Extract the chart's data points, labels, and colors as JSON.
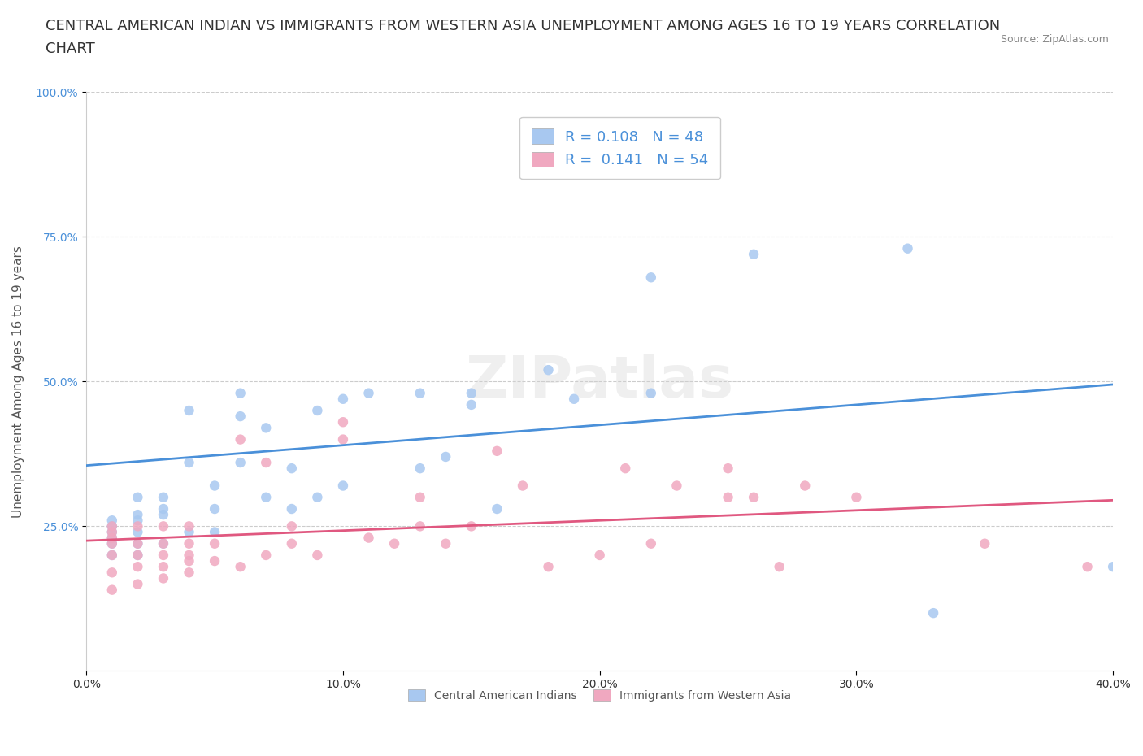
{
  "title_line1": "CENTRAL AMERICAN INDIAN VS IMMIGRANTS FROM WESTERN ASIA UNEMPLOYMENT AMONG AGES 16 TO 19 YEARS CORRELATION",
  "title_line2": "CHART",
  "source_text": "Source: ZipAtlas.com",
  "ylabel": "Unemployment Among Ages 16 to 19 years",
  "xlim": [
    0.0,
    0.4
  ],
  "ylim": [
    0.0,
    1.0
  ],
  "xtick_labels": [
    "0.0%",
    "10.0%",
    "20.0%",
    "30.0%",
    "40.0%"
  ],
  "xtick_values": [
    0.0,
    0.1,
    0.2,
    0.3,
    0.4
  ],
  "ytick_labels": [
    "25.0%",
    "50.0%",
    "75.0%",
    "100.0%"
  ],
  "ytick_values": [
    0.25,
    0.5,
    0.75,
    1.0
  ],
  "blue_color": "#a8c8f0",
  "blue_line_color": "#4a90d9",
  "pink_color": "#f0a8c0",
  "pink_line_color": "#e05880",
  "legend_r_blue": "0.108",
  "legend_n_blue": "48",
  "legend_r_pink": "0.141",
  "legend_n_pink": "54",
  "legend_label_blue": "Central American Indians",
  "legend_label_pink": "Immigrants from Western Asia",
  "watermark": "ZIPatlas",
  "blue_scatter_x": [
    0.01,
    0.01,
    0.01,
    0.01,
    0.01,
    0.01,
    0.02,
    0.02,
    0.02,
    0.02,
    0.02,
    0.02,
    0.03,
    0.03,
    0.03,
    0.03,
    0.04,
    0.04,
    0.04,
    0.05,
    0.05,
    0.05,
    0.06,
    0.06,
    0.06,
    0.07,
    0.07,
    0.08,
    0.08,
    0.09,
    0.09,
    0.1,
    0.1,
    0.11,
    0.13,
    0.13,
    0.14,
    0.15,
    0.15,
    0.16,
    0.18,
    0.19,
    0.22,
    0.22,
    0.26,
    0.32,
    0.33,
    0.4
  ],
  "blue_scatter_y": [
    0.2,
    0.22,
    0.23,
    0.24,
    0.25,
    0.26,
    0.2,
    0.22,
    0.24,
    0.26,
    0.27,
    0.3,
    0.22,
    0.27,
    0.28,
    0.3,
    0.24,
    0.36,
    0.45,
    0.24,
    0.28,
    0.32,
    0.36,
    0.44,
    0.48,
    0.3,
    0.42,
    0.28,
    0.35,
    0.3,
    0.45,
    0.32,
    0.47,
    0.48,
    0.35,
    0.48,
    0.37,
    0.46,
    0.48,
    0.28,
    0.52,
    0.47,
    0.48,
    0.68,
    0.72,
    0.73,
    0.1,
    0.18
  ],
  "pink_scatter_x": [
    0.01,
    0.01,
    0.01,
    0.01,
    0.01,
    0.01,
    0.01,
    0.02,
    0.02,
    0.02,
    0.02,
    0.02,
    0.03,
    0.03,
    0.03,
    0.03,
    0.03,
    0.04,
    0.04,
    0.04,
    0.04,
    0.04,
    0.05,
    0.05,
    0.06,
    0.06,
    0.07,
    0.07,
    0.08,
    0.08,
    0.09,
    0.1,
    0.1,
    0.11,
    0.12,
    0.13,
    0.13,
    0.14,
    0.15,
    0.16,
    0.17,
    0.18,
    0.2,
    0.21,
    0.22,
    0.23,
    0.25,
    0.25,
    0.26,
    0.27,
    0.28,
    0.3,
    0.35,
    0.39
  ],
  "pink_scatter_y": [
    0.14,
    0.17,
    0.2,
    0.22,
    0.23,
    0.24,
    0.25,
    0.15,
    0.18,
    0.2,
    0.22,
    0.25,
    0.16,
    0.18,
    0.2,
    0.22,
    0.25,
    0.17,
    0.19,
    0.2,
    0.22,
    0.25,
    0.19,
    0.22,
    0.18,
    0.4,
    0.2,
    0.36,
    0.22,
    0.25,
    0.2,
    0.4,
    0.43,
    0.23,
    0.22,
    0.25,
    0.3,
    0.22,
    0.25,
    0.38,
    0.32,
    0.18,
    0.2,
    0.35,
    0.22,
    0.32,
    0.3,
    0.35,
    0.3,
    0.18,
    0.32,
    0.3,
    0.22,
    0.18
  ],
  "blue_trendline_x": [
    0.0,
    0.4
  ],
  "blue_trendline_y": [
    0.355,
    0.495
  ],
  "pink_trendline_x": [
    0.0,
    0.4
  ],
  "pink_trendline_y": [
    0.225,
    0.295
  ],
  "grid_color": "#cccccc",
  "background_color": "#ffffff",
  "title_fontsize": 13,
  "axis_label_fontsize": 11,
  "tick_fontsize": 10,
  "legend_fontsize": 13
}
